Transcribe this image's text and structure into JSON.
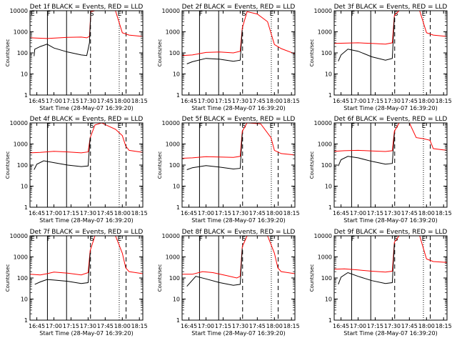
{
  "figure": {
    "background": "#ffffff"
  },
  "chart_data": [
    {
      "type": "line",
      "title": "Det 1f BLACK = Events, RED = LLD",
      "xlabel": "Start Time (28-May-07 16:39:20)",
      "ylabel": "Counts/sec",
      "xlim": [
        16.65,
        18.3
      ],
      "ylim": [
        1,
        10000
      ],
      "yscale": "log",
      "xticks": [
        "16:45",
        "17:00",
        "17:15",
        "17:30",
        "17:45",
        "18:00",
        "18:15"
      ],
      "xtick_values": [
        16.75,
        17.0,
        17.25,
        17.5,
        17.75,
        18.0,
        18.25
      ],
      "yticks": [
        "1",
        "10",
        "100",
        "1000",
        "10000"
      ],
      "markers": {
        "solid": [
          16.905,
          17.185
        ],
        "dashed": [
          17.535,
          18.055
        ],
        "dotted": [
          17.955
        ],
        "labels": [
          {
            "text": "E",
            "x": 16.69
          },
          {
            "text": "F",
            "x": 16.925
          },
          {
            "text": "S",
            "x": 17.555
          },
          {
            "text": "E",
            "x": 17.96
          }
        ]
      },
      "series": [
        {
          "color": "#ff0000",
          "x": [
            16.65,
            16.9,
            17.2,
            17.4,
            17.48,
            17.52,
            17.54,
            17.6,
            17.9,
            18.0,
            18.1,
            18.3
          ],
          "values": [
            520,
            480,
            550,
            560,
            520,
            600,
            9000,
            10000,
            10000,
            900,
            700,
            600
          ]
        },
        {
          "color": "#000000",
          "x": [
            16.65,
            16.71,
            16.72,
            16.8,
            16.9,
            17.0,
            17.2,
            17.4,
            17.48,
            17.52,
            17.54
          ],
          "values": [
            null,
            70,
            150,
            200,
            260,
            170,
            110,
            80,
            75,
            300,
            9000
          ]
        }
      ]
    },
    {
      "type": "line",
      "title": "Det 2f BLACK = Events, RED = LLD",
      "xlabel": "Start Time (28-May-07 16:39:20)",
      "ylabel": "Counts/sec",
      "xlim": [
        16.65,
        18.3
      ],
      "ylim": [
        1,
        10000
      ],
      "yscale": "log",
      "xticks": [
        "16:45",
        "17:00",
        "17:15",
        "17:30",
        "17:45",
        "18:00",
        "18:15"
      ],
      "xtick_values": [
        16.75,
        17.0,
        17.25,
        17.5,
        17.75,
        18.0,
        18.25
      ],
      "yticks": [
        "1",
        "10",
        "100",
        "1000",
        "10000"
      ],
      "markers": {
        "solid": [
          16.905,
          17.185
        ],
        "dashed": [
          17.535,
          18.055
        ],
        "dotted": [
          17.955
        ],
        "labels": [
          {
            "text": "F",
            "x": 16.925
          },
          {
            "text": "S",
            "x": 17.555
          },
          {
            "text": "E",
            "x": 17.96
          }
        ]
      },
      "series": [
        {
          "color": "#ff0000",
          "x": [
            16.65,
            16.8,
            17.0,
            17.2,
            17.4,
            17.5,
            17.53,
            17.6,
            17.75,
            17.9,
            18.0,
            18.1,
            18.3
          ],
          "values": [
            75,
            80,
            105,
            110,
            100,
            120,
            1500,
            9000,
            7000,
            3000,
            250,
            160,
            90
          ]
        },
        {
          "color": "#000000",
          "x": [
            16.65,
            16.72,
            16.8,
            17.0,
            17.2,
            17.4,
            17.5,
            17.53
          ],
          "values": [
            null,
            30,
            38,
            55,
            50,
            40,
            45,
            1200
          ]
        }
      ]
    },
    {
      "type": "line",
      "title": "Det 3f BLACK = Events, RED = LLD",
      "xlabel": "Start Time (28-May-07 16:39:20)",
      "ylabel": "Counts/sec",
      "xlim": [
        16.65,
        18.3
      ],
      "ylim": [
        1,
        10000
      ],
      "yscale": "log",
      "xticks": [
        "16:45",
        "17:00",
        "17:15",
        "17:30",
        "17:45",
        "18:00",
        "18:15"
      ],
      "xtick_values": [
        16.75,
        17.0,
        17.25,
        17.5,
        17.75,
        18.0,
        18.25
      ],
      "yticks": [
        "1",
        "10",
        "100",
        "1000",
        "10000"
      ],
      "markers": {
        "solid": [
          16.905,
          17.185
        ],
        "dashed": [
          17.535,
          18.055
        ],
        "dotted": [
          17.955
        ],
        "labels": [
          {
            "text": "F",
            "x": 16.925
          },
          {
            "text": "S",
            "x": 17.555
          },
          {
            "text": "E",
            "x": 17.96
          }
        ]
      },
      "series": [
        {
          "color": "#ff0000",
          "x": [
            16.65,
            16.8,
            17.0,
            17.2,
            17.4,
            17.5,
            17.53,
            17.6,
            17.9,
            18.0,
            18.1,
            18.3
          ],
          "values": [
            280,
            290,
            300,
            280,
            260,
            300,
            6000,
            10000,
            10000,
            900,
            700,
            600
          ]
        },
        {
          "color": "#000000",
          "x": [
            16.65,
            16.71,
            16.75,
            16.85,
            17.0,
            17.2,
            17.4,
            17.5,
            17.53
          ],
          "values": [
            null,
            40,
            80,
            150,
            120,
            65,
            45,
            55,
            5000
          ]
        }
      ]
    },
    {
      "type": "line",
      "title": "Det 4f BLACK = Events, RED = LLD",
      "xlabel": "Start Time (28-May-07 16:39:20)",
      "ylabel": "Counts/sec",
      "xlim": [
        16.65,
        18.3
      ],
      "ylim": [
        1,
        10000
      ],
      "yscale": "log",
      "xticks": [
        "16:45",
        "17:00",
        "17:15",
        "17:30",
        "17:45",
        "18:00",
        "18:15"
      ],
      "xtick_values": [
        16.75,
        17.0,
        17.25,
        17.5,
        17.75,
        18.0,
        18.25
      ],
      "yticks": [
        "1",
        "10",
        "100",
        "1000",
        "10000"
      ],
      "markers": {
        "solid": [
          16.905,
          17.185
        ],
        "dashed": [
          17.535,
          18.055
        ],
        "dotted": [
          17.955
        ],
        "labels": [
          {
            "text": "F",
            "x": 16.925
          },
          {
            "text": "S",
            "x": 17.555
          },
          {
            "text": "E",
            "x": 17.96
          }
        ]
      },
      "series": [
        {
          "color": "#ff0000",
          "x": [
            16.65,
            16.8,
            17.0,
            17.2,
            17.4,
            17.5,
            17.53,
            17.6,
            17.7,
            17.8,
            17.9,
            18.0,
            18.05,
            18.1,
            18.3
          ],
          "values": [
            380,
            400,
            450,
            420,
            380,
            420,
            2000,
            8000,
            10000,
            7000,
            5000,
            2500,
            800,
            500,
            400
          ]
        },
        {
          "color": "#000000",
          "x": [
            16.65,
            16.71,
            16.75,
            16.85,
            17.0,
            17.2,
            17.4,
            17.5,
            17.53
          ],
          "values": [
            null,
            60,
            110,
            160,
            130,
            100,
            85,
            90,
            2000
          ]
        }
      ]
    },
    {
      "type": "line",
      "title": "Det 5f BLACK = Events, RED = LLD",
      "xlabel": "Start Time (28-May-07 16:39:20)",
      "ylabel": "Counts/sec",
      "xlim": [
        16.65,
        18.3
      ],
      "ylim": [
        1,
        10000
      ],
      "yscale": "log",
      "xticks": [
        "16:45",
        "17:00",
        "17:15",
        "17:30",
        "17:45",
        "18:00",
        "18:15"
      ],
      "xtick_values": [
        16.75,
        17.0,
        17.25,
        17.5,
        17.75,
        18.0,
        18.25
      ],
      "yticks": [
        "1",
        "10",
        "100",
        "1000",
        "10000"
      ],
      "markers": {
        "solid": [
          16.905,
          17.185
        ],
        "dashed": [
          17.535,
          18.055
        ],
        "dotted": [
          17.955
        ],
        "labels": [
          {
            "text": "F",
            "x": 16.925
          },
          {
            "text": "S",
            "x": 17.555
          },
          {
            "text": "E",
            "x": 17.96
          }
        ]
      },
      "series": [
        {
          "color": "#ff0000",
          "x": [
            16.65,
            16.8,
            17.0,
            17.2,
            17.4,
            17.5,
            17.53,
            17.6,
            17.8,
            17.95,
            18.0,
            18.1,
            18.3
          ],
          "values": [
            210,
            220,
            250,
            240,
            230,
            260,
            4000,
            10000,
            9000,
            2000,
            500,
            350,
            300
          ]
        },
        {
          "color": "#000000",
          "x": [
            16.65,
            16.72,
            16.8,
            17.0,
            17.2,
            17.4,
            17.5,
            17.53
          ],
          "values": [
            null,
            60,
            75,
            95,
            80,
            65,
            70,
            3000
          ]
        }
      ]
    },
    {
      "type": "line",
      "title": "Det 6f BLACK = Events, RED = LLD",
      "xlabel": "Start Time (28-May-07 16:39:20)",
      "ylabel": "Counts/sec",
      "xlim": [
        16.65,
        18.3
      ],
      "ylim": [
        1,
        10000
      ],
      "yscale": "log",
      "xticks": [
        "16:45",
        "17:00",
        "17:15",
        "17:30",
        "17:45",
        "18:00",
        "18:15"
      ],
      "xtick_values": [
        16.75,
        17.0,
        17.25,
        17.5,
        17.75,
        18.0,
        18.25
      ],
      "yticks": [
        "1",
        "10",
        "100",
        "1000",
        "10000"
      ],
      "markers": {
        "solid": [
          16.905,
          17.185
        ],
        "dashed": [
          17.535,
          18.055
        ],
        "dotted": [
          17.955
        ],
        "labels": [
          {
            "text": "F",
            "x": 16.925
          },
          {
            "text": "S",
            "x": 17.555
          },
          {
            "text": "E",
            "x": 17.96
          }
        ]
      },
      "series": [
        {
          "color": "#ff0000",
          "x": [
            16.65,
            16.8,
            17.0,
            17.2,
            17.4,
            17.5,
            17.53,
            17.6,
            17.75,
            17.85,
            17.95,
            18.05,
            18.1,
            18.3
          ],
          "values": [
            450,
            480,
            500,
            470,
            440,
            480,
            4000,
            10000,
            10000,
            2000,
            1800,
            1500,
            600,
            500
          ]
        },
        {
          "color": "#000000",
          "x": [
            16.65,
            16.71,
            16.75,
            16.85,
            17.0,
            17.2,
            17.4,
            17.5,
            17.53
          ],
          "values": [
            null,
            90,
            180,
            260,
            220,
            150,
            110,
            120,
            3000
          ]
        }
      ]
    },
    {
      "type": "line",
      "title": "Det 7f BLACK = Events, RED = LLD",
      "xlabel": "Start Time (28-May-07 16:39:20)",
      "ylabel": "Counts/sec",
      "xlim": [
        16.65,
        18.3
      ],
      "ylim": [
        1,
        10000
      ],
      "yscale": "log",
      "xticks": [
        "16:45",
        "17:00",
        "17:15",
        "17:30",
        "17:45",
        "18:00",
        "18:15"
      ],
      "xtick_values": [
        16.75,
        17.0,
        17.25,
        17.5,
        17.75,
        18.0,
        18.25
      ],
      "yticks": [
        "1",
        "10",
        "100",
        "1000",
        "10000"
      ],
      "markers": {
        "solid": [
          16.905,
          17.185
        ],
        "dashed": [
          17.535,
          18.055
        ],
        "dotted": [
          17.955
        ],
        "labels": [
          {
            "text": "E",
            "x": 16.69
          },
          {
            "text": "F",
            "x": 16.925
          },
          {
            "text": "S",
            "x": 17.555
          },
          {
            "text": "E",
            "x": 17.96
          }
        ]
      },
      "series": [
        {
          "color": "#ff0000",
          "x": [
            16.65,
            16.8,
            16.9,
            17.0,
            17.2,
            17.4,
            17.5,
            17.53,
            17.6,
            17.9,
            18.0,
            18.05,
            18.1,
            18.3
          ],
          "values": [
            150,
            140,
            160,
            190,
            170,
            140,
            180,
            2000,
            10000,
            10000,
            1500,
            300,
            200,
            160
          ]
        },
        {
          "color": "#000000",
          "x": [
            16.65,
            16.72,
            16.8,
            16.9,
            17.0,
            17.2,
            17.4,
            17.5,
            17.53
          ],
          "values": [
            null,
            50,
            65,
            85,
            80,
            70,
            55,
            60,
            1500
          ]
        }
      ]
    },
    {
      "type": "line",
      "title": "Det 8f BLACK = Events, RED = LLD",
      "xlabel": "Start Time (28-May-07 16:39:20)",
      "ylabel": "Counts/sec",
      "xlim": [
        16.65,
        18.3
      ],
      "ylim": [
        1,
        10000
      ],
      "yscale": "log",
      "xticks": [
        "16:45",
        "17:00",
        "17:15",
        "17:30",
        "17:45",
        "18:00",
        "18:15"
      ],
      "xtick_values": [
        16.75,
        17.0,
        17.25,
        17.5,
        17.75,
        18.0,
        18.25
      ],
      "yticks": [
        "1",
        "10",
        "100",
        "1000",
        "10000"
      ],
      "markers": {
        "solid": [
          16.905,
          17.185
        ],
        "dashed": [
          17.535,
          18.055
        ],
        "dotted": [
          17.955
        ],
        "labels": [
          {
            "text": "F",
            "x": 16.925
          },
          {
            "text": "S",
            "x": 17.555
          },
          {
            "text": "E",
            "x": 17.96
          }
        ]
      },
      "series": [
        {
          "color": "#ff0000",
          "x": [
            16.65,
            16.8,
            16.95,
            17.1,
            17.3,
            17.45,
            17.5,
            17.53,
            17.6,
            17.9,
            18.0,
            18.05,
            18.1,
            18.3
          ],
          "values": [
            150,
            150,
            200,
            180,
            130,
            100,
            120,
            3000,
            10000,
            10000,
            1500,
            300,
            200,
            160
          ]
        },
        {
          "color": "#000000",
          "x": [
            16.65,
            16.72,
            16.85,
            17.0,
            17.2,
            17.4,
            17.5,
            17.53
          ],
          "values": [
            null,
            40,
            120,
            90,
            60,
            45,
            50,
            2500
          ]
        }
      ]
    },
    {
      "type": "line",
      "title": "Det 9f BLACK = Events, RED = LLD",
      "xlabel": "Start Time (28-May-07 16:39:20)",
      "ylabel": "Counts/sec",
      "xlim": [
        16.65,
        18.3
      ],
      "ylim": [
        1,
        10000
      ],
      "yscale": "log",
      "xticks": [
        "16:45",
        "17:00",
        "17:15",
        "17:30",
        "17:45",
        "18:00",
        "18:15"
      ],
      "xtick_values": [
        16.75,
        17.0,
        17.25,
        17.5,
        17.75,
        18.0,
        18.25
      ],
      "yticks": [
        "1",
        "10",
        "100",
        "1000",
        "10000"
      ],
      "markers": {
        "solid": [
          16.905,
          17.185
        ],
        "dashed": [
          17.535,
          18.055
        ],
        "dotted": [
          17.955
        ],
        "labels": [
          {
            "text": "F",
            "x": 16.925
          },
          {
            "text": "S",
            "x": 17.555
          },
          {
            "text": "E",
            "x": 17.96
          }
        ]
      },
      "series": [
        {
          "color": "#ff0000",
          "x": [
            16.65,
            16.8,
            17.0,
            17.2,
            17.4,
            17.5,
            17.53,
            17.6,
            17.9,
            18.0,
            18.1,
            18.3
          ],
          "values": [
            260,
            270,
            240,
            210,
            190,
            210,
            5000,
            10000,
            10000,
            800,
            600,
            550
          ]
        },
        {
          "color": "#000000",
          "x": [
            16.65,
            16.71,
            16.75,
            16.85,
            17.0,
            17.2,
            17.4,
            17.5,
            17.53
          ],
          "values": [
            null,
            50,
            110,
            180,
            120,
            75,
            55,
            60,
            4000
          ]
        }
      ]
    }
  ]
}
